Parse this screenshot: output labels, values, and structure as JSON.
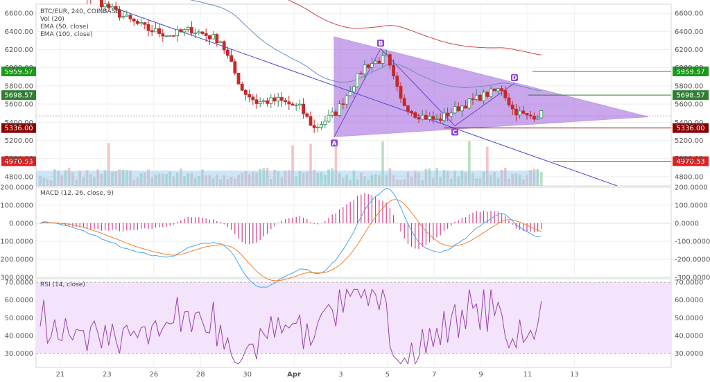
{
  "chart_data": {
    "type": "candlestick",
    "legend": {
      "title": "BTC/EUR, 240, COINBASE",
      "volume": "Vol (20)",
      "ema50": "EMA (50, close)",
      "ema100": "EMA (100, close)",
      "macd": "MACD (12, 26, close, 9)",
      "rsi": "RSI (14, close)"
    },
    "x_ticks": [
      "21",
      "23",
      "26",
      "28",
      "30",
      "Apr",
      "3",
      "5",
      "7",
      "9",
      "11",
      "13"
    ],
    "price_axis": {
      "ticks": [
        "6600.00",
        "6400.00",
        "6200.00",
        "6000.00",
        "5800.00",
        "5600.00",
        "5400.00",
        "5200.00",
        "5000.00",
        "4800.00"
      ],
      "ylim": [
        4700,
        6700
      ]
    },
    "macd_axis": {
      "ticks": [
        "200.0000",
        "100.0000",
        "0.0000",
        "-100.0000",
        "-200.0000",
        "-300.0000"
      ],
      "ylim": [
        -300,
        200
      ]
    },
    "rsi_axis": {
      "ticks": [
        "70.0000",
        "60.0000",
        "50.0000",
        "40.0000",
        "30.0000"
      ],
      "ylim": [
        22,
        72
      ],
      "band": [
        30,
        70
      ]
    },
    "levels": [
      {
        "label": "5959.57",
        "value": 5959.57,
        "color": "#1a9a1a"
      },
      {
        "label": "5698.57",
        "value": 5698.57,
        "color": "#2e7d32"
      },
      {
        "label": "5336.00",
        "value": 5336.0,
        "color": "#8b0000"
      },
      {
        "label": "4970.53",
        "value": 4970.53,
        "color": "#e02020"
      }
    ],
    "pattern_points": [
      {
        "label": "A",
        "value": 5240
      },
      {
        "label": "B",
        "value": 6210
      },
      {
        "label": "C",
        "value": 5360
      },
      {
        "label": "D",
        "value": 5830
      }
    ],
    "colors": {
      "up": "#2e8b57",
      "down": "#c62828",
      "ema50": "#6a8fb5",
      "ema100": "#d04040",
      "trend": "#4a4ad0",
      "triangle": "#a060e0",
      "macd": "#42a5f5",
      "signal": "#f08030",
      "hist": "#d0408a",
      "rsi": "#9a3fb0"
    }
  }
}
